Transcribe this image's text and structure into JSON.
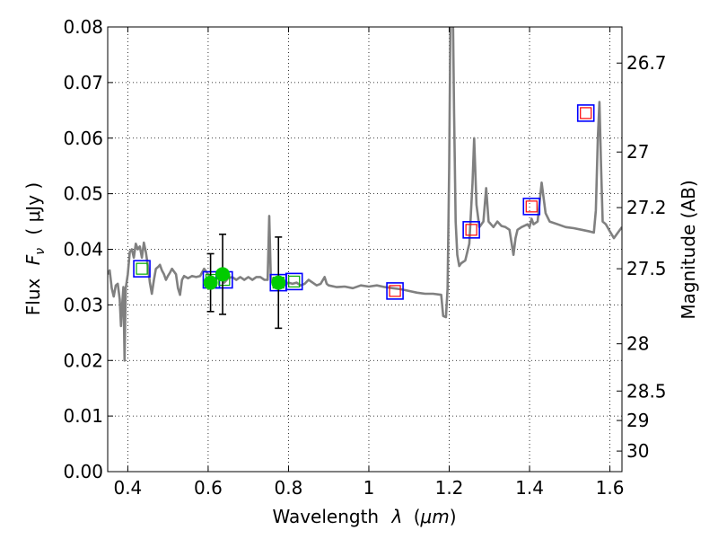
{
  "chart_data": {
    "type": "scatter",
    "xlabel": "Wavelength",
    "xlabel_symbol": "λ",
    "xlabel_unit_open": "(",
    "xlabel_unit": "μm",
    "xlabel_unit_close": ")",
    "ylabel": "Flux",
    "ylabel_symbol": "F",
    "ylabel_subscript": "ν",
    "ylabel_unit": "( μJy )",
    "y2label": "Magnitude (AB)",
    "xlim": [
      0.35,
      1.63
    ],
    "ylim": [
      0.0,
      0.08
    ],
    "grid": true,
    "xticks": [
      {
        "value": 0.4,
        "label": "0.4"
      },
      {
        "value": 0.6,
        "label": "0.6"
      },
      {
        "value": 0.8,
        "label": "0.8"
      },
      {
        "value": 1.0,
        "label": "1"
      },
      {
        "value": 1.2,
        "label": "1.2"
      },
      {
        "value": 1.4,
        "label": "1.4"
      },
      {
        "value": 1.6,
        "label": "1.6"
      }
    ],
    "yticks": [
      {
        "value": 0.0,
        "label": "0.00"
      },
      {
        "value": 0.01,
        "label": "0.01"
      },
      {
        "value": 0.02,
        "label": "0.02"
      },
      {
        "value": 0.03,
        "label": "0.03"
      },
      {
        "value": 0.04,
        "label": "0.04"
      },
      {
        "value": 0.05,
        "label": "0.05"
      },
      {
        "value": 0.06,
        "label": "0.06"
      },
      {
        "value": 0.07,
        "label": "0.07"
      },
      {
        "value": 0.08,
        "label": "0.08"
      }
    ],
    "mag_ticks": [
      {
        "flux": 0.0735,
        "label": "26.7"
      },
      {
        "flux": 0.0575,
        "label": "27"
      },
      {
        "flux": 0.0475,
        "label": "27.2"
      },
      {
        "flux": 0.0365,
        "label": "27.5"
      },
      {
        "flux": 0.023,
        "label": "28"
      },
      {
        "flux": 0.0145,
        "label": "28.5"
      },
      {
        "flux": 0.0092,
        "label": "29"
      },
      {
        "flux": 0.0037,
        "label": "30"
      }
    ],
    "colors": {
      "sed_line": "#808080",
      "observed_marker": "#00cc00",
      "model_box_outer": "#0000ff",
      "model_box_inner_blue": "#00aa00",
      "model_box_inner_red": "#ff0000",
      "errorbar": "#000000"
    },
    "series": [
      {
        "type": "line",
        "points": [
          [
            0.35,
            0.0355
          ],
          [
            0.355,
            0.0362
          ],
          [
            0.36,
            0.033
          ],
          [
            0.365,
            0.0315
          ],
          [
            0.37,
            0.0335
          ],
          [
            0.375,
            0.0338
          ],
          [
            0.38,
            0.031
          ],
          [
            0.383,
            0.0262
          ],
          [
            0.386,
            0.03
          ],
          [
            0.389,
            0.0332
          ],
          [
            0.392,
            0.02
          ],
          [
            0.395,
            0.033
          ],
          [
            0.4,
            0.0355
          ],
          [
            0.405,
            0.0395
          ],
          [
            0.41,
            0.04
          ],
          [
            0.415,
            0.0385
          ],
          [
            0.42,
            0.041
          ],
          [
            0.425,
            0.04
          ],
          [
            0.43,
            0.0405
          ],
          [
            0.435,
            0.0385
          ],
          [
            0.44,
            0.0412
          ],
          [
            0.445,
            0.0395
          ],
          [
            0.45,
            0.037
          ],
          [
            0.455,
            0.034
          ],
          [
            0.46,
            0.032
          ],
          [
            0.465,
            0.0345
          ],
          [
            0.47,
            0.0365
          ],
          [
            0.475,
            0.0368
          ],
          [
            0.48,
            0.0372
          ],
          [
            0.485,
            0.0362
          ],
          [
            0.49,
            0.0355
          ],
          [
            0.495,
            0.0345
          ],
          [
            0.5,
            0.0352
          ],
          [
            0.505,
            0.0358
          ],
          [
            0.51,
            0.0365
          ],
          [
            0.515,
            0.036
          ],
          [
            0.52,
            0.0355
          ],
          [
            0.525,
            0.033
          ],
          [
            0.53,
            0.0318
          ],
          [
            0.535,
            0.0345
          ],
          [
            0.54,
            0.0352
          ],
          [
            0.55,
            0.0348
          ],
          [
            0.56,
            0.0352
          ],
          [
            0.57,
            0.035
          ],
          [
            0.58,
            0.0352
          ],
          [
            0.59,
            0.0365
          ],
          [
            0.6,
            0.0355
          ],
          [
            0.61,
            0.035
          ],
          [
            0.62,
            0.0345
          ],
          [
            0.63,
            0.0355
          ],
          [
            0.64,
            0.034
          ],
          [
            0.65,
            0.0348
          ],
          [
            0.66,
            0.035
          ],
          [
            0.67,
            0.0345
          ],
          [
            0.68,
            0.035
          ],
          [
            0.69,
            0.0345
          ],
          [
            0.7,
            0.035
          ],
          [
            0.71,
            0.0345
          ],
          [
            0.72,
            0.035
          ],
          [
            0.73,
            0.035
          ],
          [
            0.74,
            0.0345
          ],
          [
            0.748,
            0.0345
          ],
          [
            0.752,
            0.046
          ],
          [
            0.756,
            0.035
          ],
          [
            0.76,
            0.034
          ],
          [
            0.77,
            0.0338
          ],
          [
            0.78,
            0.034
          ],
          [
            0.79,
            0.0335
          ],
          [
            0.8,
            0.034
          ],
          [
            0.81,
            0.0338
          ],
          [
            0.82,
            0.034
          ],
          [
            0.83,
            0.0335
          ],
          [
            0.84,
            0.0338
          ],
          [
            0.85,
            0.0345
          ],
          [
            0.86,
            0.034
          ],
          [
            0.87,
            0.0335
          ],
          [
            0.88,
            0.0338
          ],
          [
            0.89,
            0.035
          ],
          [
            0.895,
            0.0338
          ],
          [
            0.9,
            0.0335
          ],
          [
            0.92,
            0.0332
          ],
          [
            0.94,
            0.0333
          ],
          [
            0.96,
            0.033
          ],
          [
            0.98,
            0.0335
          ],
          [
            1.0,
            0.0333
          ],
          [
            1.02,
            0.0335
          ],
          [
            1.04,
            0.0332
          ],
          [
            1.06,
            0.033
          ],
          [
            1.08,
            0.0328
          ],
          [
            1.1,
            0.0325
          ],
          [
            1.12,
            0.0322
          ],
          [
            1.14,
            0.032
          ],
          [
            1.16,
            0.032
          ],
          [
            1.18,
            0.0318
          ],
          [
            1.185,
            0.028
          ],
          [
            1.192,
            0.0278
          ],
          [
            1.196,
            0.033
          ],
          [
            1.2,
            0.055
          ],
          [
            1.204,
            0.09
          ],
          [
            1.208,
            0.09
          ],
          [
            1.212,
            0.065
          ],
          [
            1.216,
            0.045
          ],
          [
            1.22,
            0.039
          ],
          [
            1.225,
            0.037
          ],
          [
            1.23,
            0.0375
          ],
          [
            1.24,
            0.038
          ],
          [
            1.25,
            0.041
          ],
          [
            1.258,
            0.052
          ],
          [
            1.262,
            0.06
          ],
          [
            1.268,
            0.048
          ],
          [
            1.275,
            0.044
          ],
          [
            1.285,
            0.045
          ],
          [
            1.292,
            0.051
          ],
          [
            1.298,
            0.045
          ],
          [
            1.31,
            0.044
          ],
          [
            1.32,
            0.045
          ],
          [
            1.33,
            0.0442
          ],
          [
            1.34,
            0.044
          ],
          [
            1.35,
            0.0435
          ],
          [
            1.36,
            0.039
          ],
          [
            1.365,
            0.042
          ],
          [
            1.37,
            0.0435
          ],
          [
            1.38,
            0.044
          ],
          [
            1.395,
            0.0445
          ],
          [
            1.4,
            0.044
          ],
          [
            1.405,
            0.0455
          ],
          [
            1.41,
            0.0445
          ],
          [
            1.42,
            0.045
          ],
          [
            1.43,
            0.052
          ],
          [
            1.44,
            0.0465
          ],
          [
            1.45,
            0.045
          ],
          [
            1.47,
            0.0445
          ],
          [
            1.49,
            0.044
          ],
          [
            1.51,
            0.0438
          ],
          [
            1.53,
            0.0435
          ],
          [
            1.55,
            0.0432
          ],
          [
            1.56,
            0.043
          ],
          [
            1.565,
            0.047
          ],
          [
            1.57,
            0.06
          ],
          [
            1.574,
            0.0665
          ],
          [
            1.578,
            0.055
          ],
          [
            1.582,
            0.045
          ],
          [
            1.59,
            0.0445
          ],
          [
            1.6,
            0.0432
          ],
          [
            1.61,
            0.042
          ],
          [
            1.62,
            0.043
          ],
          [
            1.63,
            0.044
          ]
        ]
      },
      {
        "type": "model_boxes",
        "points": [
          {
            "x": 0.435,
            "y": 0.0365,
            "inner": "green"
          },
          {
            "x": 0.608,
            "y": 0.0345,
            "inner": "green"
          },
          {
            "x": 0.64,
            "y": 0.0345,
            "inner": "green"
          },
          {
            "x": 0.775,
            "y": 0.034,
            "inner": "green"
          },
          {
            "x": 0.814,
            "y": 0.0342,
            "inner": "green"
          },
          {
            "x": 1.065,
            "y": 0.0325,
            "inner": "red"
          },
          {
            "x": 1.255,
            "y": 0.0435,
            "inner": "red"
          },
          {
            "x": 1.405,
            "y": 0.0477,
            "inner": "red"
          },
          {
            "x": 1.54,
            "y": 0.0645,
            "inner": "red"
          }
        ]
      },
      {
        "type": "observed",
        "points": [
          {
            "x": 0.606,
            "y": 0.034,
            "err": 0.0052
          },
          {
            "x": 0.636,
            "y": 0.0355,
            "err": 0.0072
          },
          {
            "x": 0.775,
            "y": 0.034,
            "err": 0.0082
          }
        ]
      }
    ]
  }
}
